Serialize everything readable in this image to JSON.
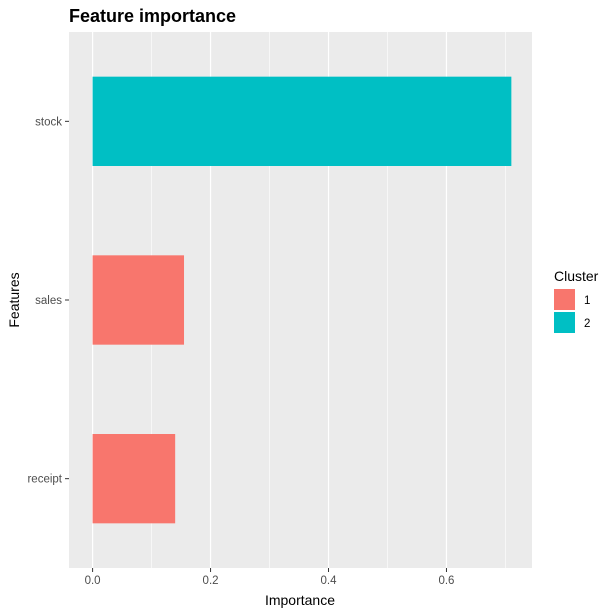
{
  "chart_data": {
    "type": "bar",
    "orientation": "horizontal",
    "title": "Feature importance",
    "xlabel": "Importance",
    "ylabel": "Features",
    "categories": [
      "stock",
      "sales",
      "receipt"
    ],
    "values": [
      0.71,
      0.155,
      0.14
    ],
    "clusters": [
      "2",
      "1",
      "1"
    ],
    "xlim": [
      -0.04,
      0.745
    ],
    "xticks": [
      0.0,
      0.2,
      0.4,
      0.6
    ],
    "xtick_labels": [
      "0.0",
      "0.2",
      "0.4",
      "0.6"
    ],
    "grid": true,
    "legend": {
      "title": "Cluster",
      "placement": "right",
      "entries": [
        {
          "label": "1",
          "color": "#F8766D"
        },
        {
          "label": "2",
          "color": "#00BFC4"
        }
      ]
    },
    "panel_background": "#EBEBEB",
    "grid_color": "#FFFFFF"
  }
}
